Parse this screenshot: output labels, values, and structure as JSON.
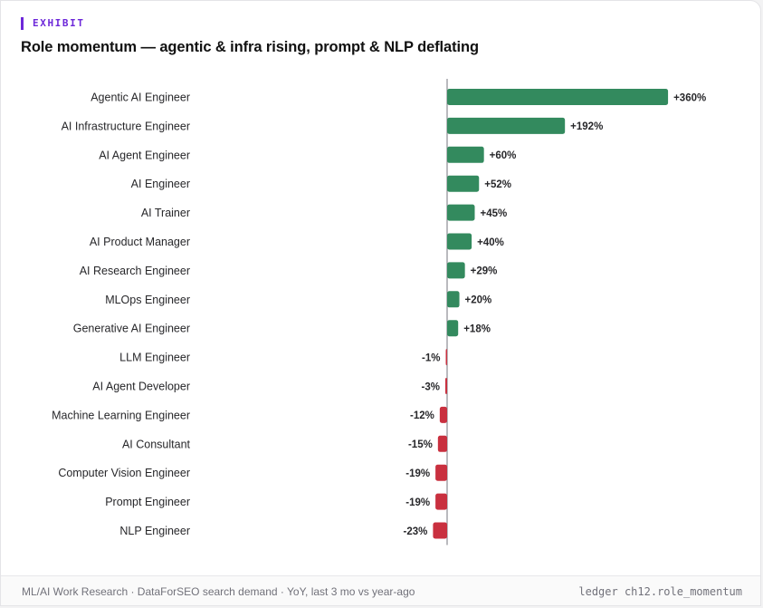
{
  "eyebrow": "EXHIBIT",
  "title": "Role momentum — agentic & infra rising, prompt & NLP deflating",
  "footer": {
    "source": "ML/AI Work Research · DataForSEO search demand · YoY, last 3 mo vs year-ago",
    "code": "ledger ch12.role_momentum"
  },
  "colors": {
    "positive": "#338a5e",
    "negative": "#c9303f",
    "zero_line": "#8d8d93"
  },
  "chart_data": {
    "type": "bar",
    "orientation": "horizontal",
    "categories": [
      "Agentic AI Engineer",
      "AI Infrastructure Engineer",
      "AI Agent Engineer",
      "AI Engineer",
      "AI Trainer",
      "AI Product Manager",
      "AI Research Engineer",
      "MLOps Engineer",
      "Generative AI Engineer",
      "LLM Engineer",
      "AI Agent Developer",
      "Machine Learning Engineer",
      "AI Consultant",
      "Computer Vision Engineer",
      "Prompt Engineer",
      "NLP Engineer"
    ],
    "values": [
      360,
      192,
      60,
      52,
      45,
      40,
      29,
      20,
      18,
      -1,
      -3,
      -12,
      -15,
      -19,
      -19,
      -23
    ],
    "value_labels": [
      "+360%",
      "+192%",
      "+60%",
      "+52%",
      "+45%",
      "+40%",
      "+29%",
      "+20%",
      "+18%",
      "-1%",
      "-3%",
      "-12%",
      "-15%",
      "-19%",
      "-19%",
      "-23%"
    ],
    "unit": "%",
    "grid": false,
    "legend": "none"
  }
}
